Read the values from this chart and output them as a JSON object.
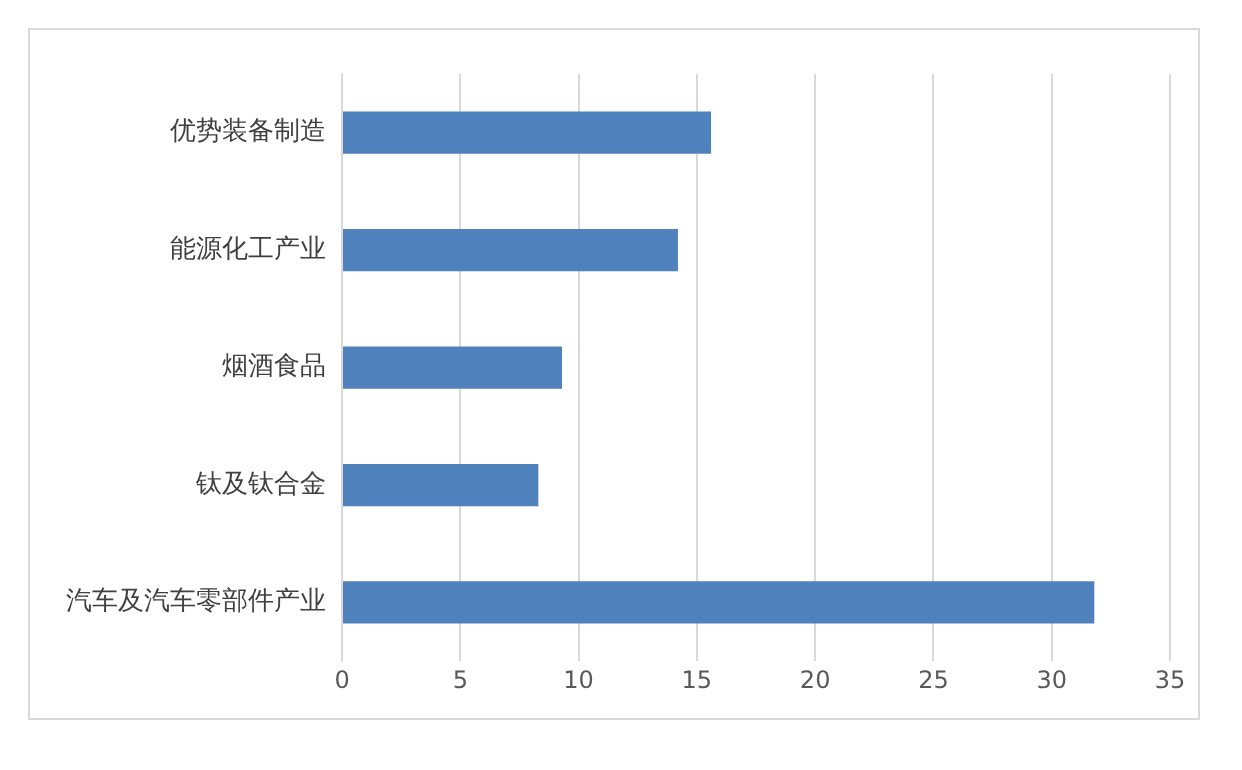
{
  "chart_data": {
    "type": "bar",
    "orientation": "horizontal",
    "categories": [
      "优势装备制造",
      "能源化工产业",
      "烟酒食品",
      "钛及钛合金",
      "汽车及汽车零部件产业"
    ],
    "values": [
      15.6,
      14.2,
      9.3,
      8.3,
      31.8
    ],
    "color": "#4f81bd",
    "xlim": [
      0,
      35
    ],
    "xticks": [
      0,
      5,
      10,
      15,
      20,
      25,
      30,
      35
    ],
    "grid": "x",
    "legend": false
  }
}
